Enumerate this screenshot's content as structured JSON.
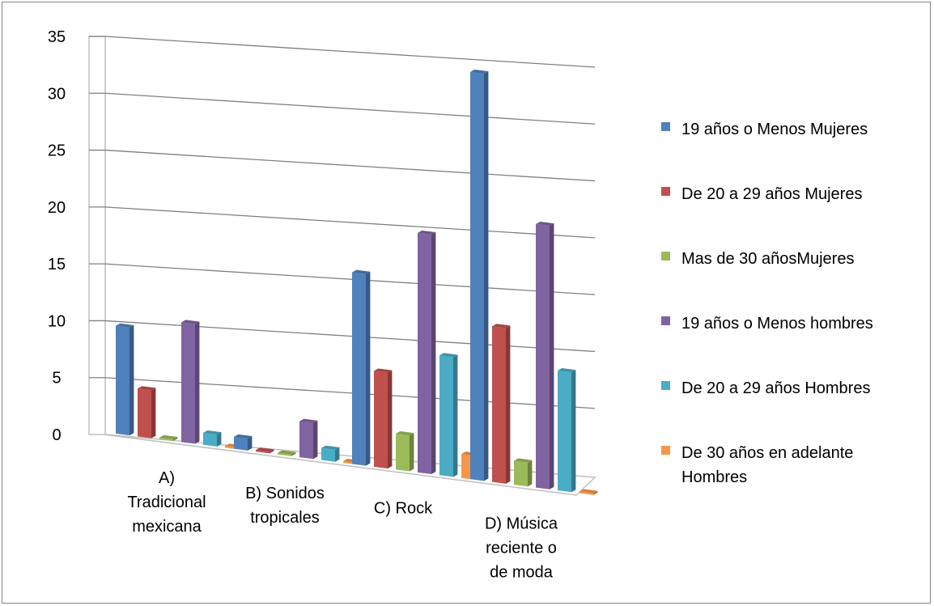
{
  "chart_data": {
    "type": "bar",
    "subtype": "3d-clustered-column",
    "categories": [
      "A) Tradicional mexicana",
      "B) Sonidos tropicales",
      "C) Rock",
      "D) Música reciente o de moda"
    ],
    "category_label_lines": [
      [
        "A)",
        "Tradicional",
        "mexicana"
      ],
      [
        "B) Sonidos",
        "tropicales"
      ],
      [
        "C) Rock"
      ],
      [
        "D) Música",
        "reciente o",
        "de moda"
      ]
    ],
    "series": [
      {
        "name": "19 años o Menos Mujeres",
        "color": "#4F81BD",
        "values": [
          9,
          1,
          16,
          34
        ]
      },
      {
        "name": "De 20 a 29 años Mujeres",
        "color": "#C0504D",
        "values": [
          4,
          0,
          8,
          13
        ]
      },
      {
        "name": "Mas de 30 añosMujeres",
        "color": "#9BBB59",
        "values": [
          0,
          0,
          3,
          2
        ]
      },
      {
        "name": "19 años o Menos hombres",
        "color": "#8064A2",
        "values": [
          10,
          3,
          20,
          22
        ]
      },
      {
        "name": "De 20 a 29 años Hombres",
        "color": "#4BACC6",
        "values": [
          1,
          1,
          10,
          10
        ]
      },
      {
        "name": "De 30 años en adelante Hombres",
        "color": "#F79646",
        "values": [
          0,
          0,
          2,
          0
        ]
      }
    ],
    "legend_label_lines": [
      [
        "19 años o Menos Mujeres"
      ],
      [
        "De 20 a 29 años Mujeres"
      ],
      [
        "Mas de 30 añosMujeres"
      ],
      [
        "19 años o Menos hombres"
      ],
      [
        "De 20 a 29 años Hombres"
      ],
      [
        "De 30 años en adelante",
        "Hombres"
      ]
    ],
    "ylim": [
      0,
      35
    ],
    "yticks": [
      "0",
      "5",
      "10",
      "15",
      "20",
      "25",
      "30",
      "35"
    ],
    "ytick_values": [
      0,
      5,
      10,
      15,
      20,
      25,
      30,
      35
    ],
    "grid": true,
    "legend_position": "right",
    "title": "",
    "xlabel": "",
    "ylabel": ""
  }
}
